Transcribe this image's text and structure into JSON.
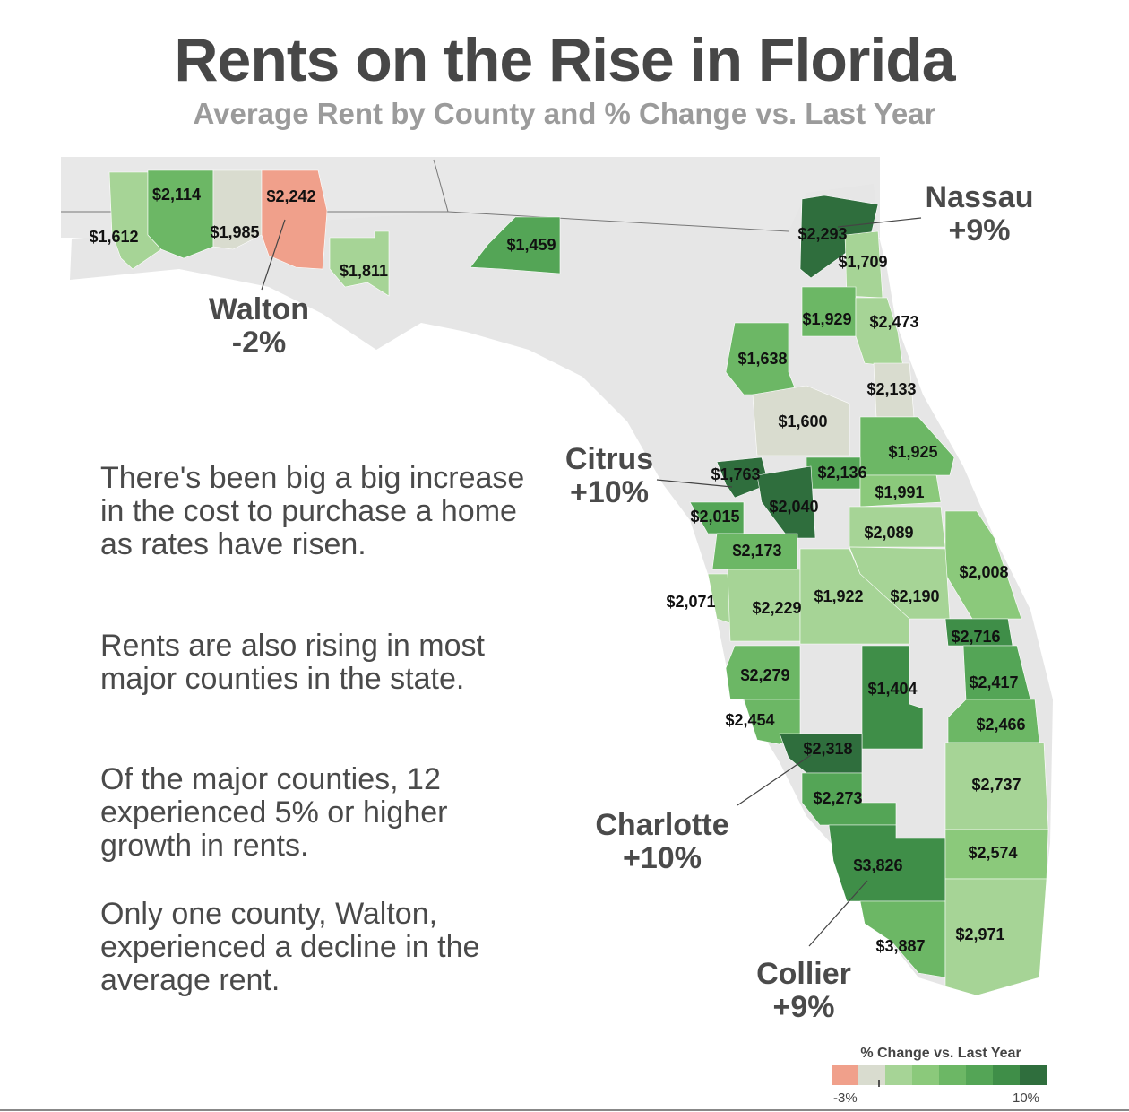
{
  "title": "Rents on the Rise in Florida",
  "subtitle": "Average Rent by County and % Change vs. Last Year",
  "paragraphs": [
    "There's been big a big increase in the cost to purchase a home as rates have risen.",
    "Rents are also rising in most major counties in the state.",
    "Of the major counties, 12 experienced 5% or higher growth in rents.",
    "Only one county, Walton, experienced a decline in the average rent."
  ],
  "colors": {
    "decline": "#f0a08b",
    "flat": "#d9dccf",
    "g1": "#a6d496",
    "g2": "#8bc97b",
    "g3": "#6cb765",
    "g4": "#54a556",
    "g5": "#3f8e48",
    "g6": "#2f6e3d",
    "nodata": "#e4e4e4",
    "text": "#111111"
  },
  "counties": [
    {
      "rent": "$1,612",
      "shade": "g1"
    },
    {
      "rent": "$2,114",
      "shade": "g3"
    },
    {
      "rent": "$1,985",
      "shade": "flat"
    },
    {
      "rent": "$2,242",
      "shade": "decline"
    },
    {
      "rent": "$1,811",
      "shade": "g1"
    },
    {
      "rent": "$1,459",
      "shade": "g4"
    },
    {
      "rent": "$2,293",
      "shade": "g6"
    },
    {
      "rent": "$1,709",
      "shade": "g1"
    },
    {
      "rent": "$1,929",
      "shade": "g3"
    },
    {
      "rent": "$2,473",
      "shade": "g1"
    },
    {
      "rent": "$1,638",
      "shade": "g3"
    },
    {
      "rent": "$2,133",
      "shade": "flat"
    },
    {
      "rent": "$1,600",
      "shade": "flat"
    },
    {
      "rent": "$1,925",
      "shade": "g3"
    },
    {
      "rent": "$1,763",
      "shade": "g6"
    },
    {
      "rent": "$2,136",
      "shade": "g4"
    },
    {
      "rent": "$1,991",
      "shade": "g2"
    },
    {
      "rent": "$2,015",
      "shade": "g4"
    },
    {
      "rent": "$2,040",
      "shade": "g6"
    },
    {
      "rent": "$2,089",
      "shade": "g1"
    },
    {
      "rent": "$2,173",
      "shade": "g3"
    },
    {
      "rent": "$2,008",
      "shade": "g2"
    },
    {
      "rent": "$2,071",
      "shade": "g1"
    },
    {
      "rent": "$2,229",
      "shade": "g1"
    },
    {
      "rent": "$1,922",
      "shade": "g1"
    },
    {
      "rent": "$2,190",
      "shade": "g1"
    },
    {
      "rent": "$2,716",
      "shade": "g5"
    },
    {
      "rent": "$2,279",
      "shade": "g3"
    },
    {
      "rent": "$1,404",
      "shade": "g5"
    },
    {
      "rent": "$2,417",
      "shade": "g4"
    },
    {
      "rent": "$2,454",
      "shade": "g3"
    },
    {
      "rent": "$2,466",
      "shade": "g3"
    },
    {
      "rent": "$2,318",
      "shade": "g6"
    },
    {
      "rent": "$2,737",
      "shade": "g1"
    },
    {
      "rent": "$2,273",
      "shade": "g4"
    },
    {
      "rent": "$3,826",
      "shade": "g5"
    },
    {
      "rent": "$2,574",
      "shade": "g2"
    },
    {
      "rent": "$3,887",
      "shade": "g3"
    },
    {
      "rent": "$2,971",
      "shade": "g1"
    }
  ],
  "callouts": [
    {
      "name": "Nassau",
      "change": "+9%"
    },
    {
      "name": "Walton",
      "change": "-2%"
    },
    {
      "name": "Citrus",
      "change": "+10%"
    },
    {
      "name": "Charlotte",
      "change": "+10%"
    },
    {
      "name": "Collier",
      "change": "+9%"
    }
  ],
  "legend": {
    "title": "% Change vs. Last Year",
    "min_label": "-3%",
    "max_label": "10%",
    "colors": [
      "#f0a08b",
      "#d9dccf",
      "#a6d496",
      "#8bc97b",
      "#6cb765",
      "#54a556",
      "#3f8e48",
      "#2f6e3d"
    ]
  }
}
